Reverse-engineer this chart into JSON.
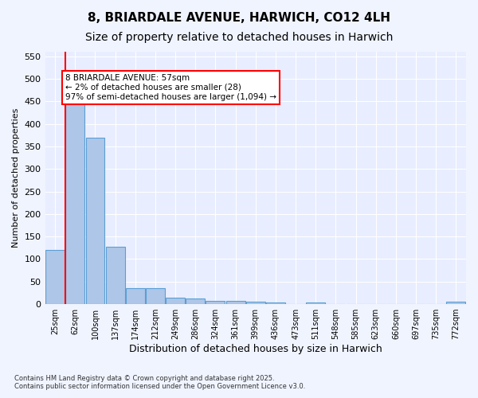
{
  "title1": "8, BRIARDALE AVENUE, HARWICH, CO12 4LH",
  "title2": "Size of property relative to detached houses in Harwich",
  "xlabel": "Distribution of detached houses by size in Harwich",
  "ylabel": "Number of detached properties",
  "categories": [
    "25sqm",
    "62sqm",
    "100sqm",
    "137sqm",
    "174sqm",
    "212sqm",
    "249sqm",
    "286sqm",
    "324sqm",
    "361sqm",
    "399sqm",
    "436sqm",
    "473sqm",
    "511sqm",
    "548sqm",
    "585sqm",
    "623sqm",
    "660sqm",
    "697sqm",
    "735sqm",
    "772sqm"
  ],
  "values": [
    120,
    455,
    370,
    128,
    35,
    35,
    15,
    12,
    8,
    7,
    6,
    3,
    1,
    3,
    0,
    0,
    0,
    0,
    0,
    0,
    5
  ],
  "bar_color": "#aec6e8",
  "bar_edge_color": "#5a9fd4",
  "red_line_x": 0,
  "annotation_text": "8 BRIARDALE AVENUE: 57sqm\n← 2% of detached houses are smaller (28)\n97% of semi-detached houses are larger (1,094) →",
  "annotation_box_color": "#cc0000",
  "ylim": [
    0,
    560
  ],
  "yticks": [
    0,
    50,
    100,
    150,
    200,
    250,
    300,
    350,
    400,
    450,
    500,
    550
  ],
  "footer": "Contains HM Land Registry data © Crown copyright and database right 2025.\nContains public sector information licensed under the Open Government Licence v3.0.",
  "bg_color": "#f0f4ff",
  "plot_bg_color": "#e8eeff",
  "grid_color": "#ffffff",
  "title_fontsize": 11,
  "subtitle_fontsize": 10
}
